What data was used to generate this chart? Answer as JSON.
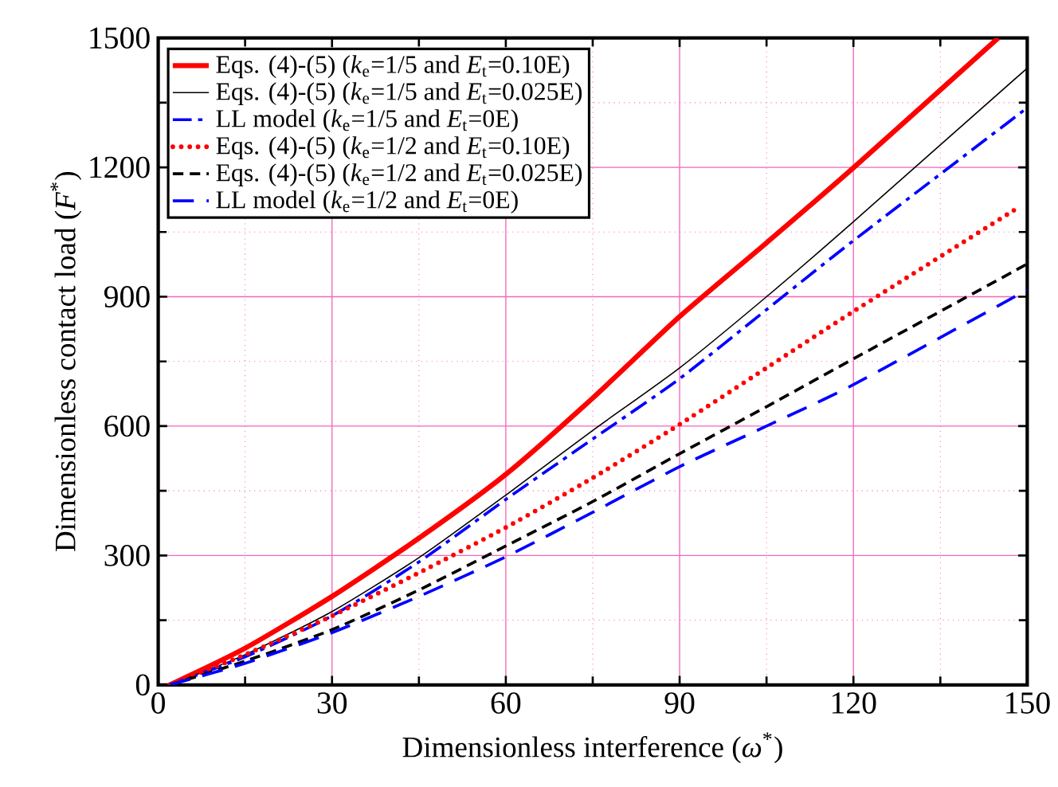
{
  "chart_data": {
    "type": "line",
    "xlabel": "Dimensionless interference (*ω*$^{*}$)",
    "ylabel": "Dimensionless contact load (*F*$^{*}$)",
    "xlim": [
      0,
      150
    ],
    "ylim": [
      0,
      1500
    ],
    "xticks": [
      0,
      {
        "value": 15,
        "label": null
      },
      30,
      {
        "value": 45,
        "label": null
      },
      60,
      {
        "value": 75,
        "label": null
      },
      90,
      {
        "value": 105,
        "label": null
      },
      120,
      {
        "value": 135,
        "label": null
      },
      150
    ],
    "yticks": [
      0,
      {
        "value": 150,
        "label": null
      },
      300,
      {
        "value": 450,
        "label": null
      },
      600,
      {
        "value": 750,
        "label": null
      },
      900,
      {
        "value": 1050,
        "label": null
      },
      1200,
      {
        "value": 1350,
        "label": null
      },
      1500
    ],
    "grid": true,
    "legend": "top left",
    "series": [
      {
        "name": "Eqs. (4)-(5) (*k*$_{e}$=1/5 and *E*$_{t}$=0.10E)",
        "color": "#ff0000",
        "line_style": "solid",
        "x": [
          2,
          15,
          30,
          45,
          60,
          75,
          90,
          105,
          120,
          145
        ],
        "values": [
          0,
          85,
          205,
          340,
          488,
          665,
          854,
          1025,
          1199,
          1500
        ]
      },
      {
        "name": "Eqs. (4)-(5) (*k*$_{e}$=1/5 and *E*$_{t}$=0.025E)",
        "color": "#000000",
        "line_style": "solid",
        "x": [
          2,
          15,
          30,
          45,
          60,
          75,
          90,
          105,
          120,
          150
        ],
        "values": [
          0,
          70,
          170,
          295,
          440,
          590,
          735,
          900,
          1074,
          1430
        ]
      },
      {
        "name": "LL model (*k*$_{e}$=1/5 and *E*$_{t}$=0E)",
        "color": "#0000ff",
        "line_style": "dashdot",
        "x": [
          2,
          15,
          30,
          45,
          60,
          75,
          90,
          105,
          120,
          150
        ],
        "values": [
          0,
          65,
          160,
          285,
          430,
          570,
          710,
          870,
          1030,
          1338
        ]
      },
      {
        "name": "Eqs. (4)-(5) (*k*$_{e}$=1/2 and *E*$_{t}$=0.10E)",
        "color": "#ff0000",
        "line_style": "dotted",
        "x": [
          2,
          15,
          30,
          45,
          60,
          75,
          90,
          105,
          120,
          148
        ],
        "values": [
          0,
          70,
          160,
          260,
          365,
          480,
          604,
          735,
          866,
          1103
        ]
      },
      {
        "name": "Eqs. (4)-(5) (*k*$_{e}$=1/2 and *E*$_{t}$=0.025E)",
        "color": "#000000",
        "line_style": "dashed",
        "x": [
          2,
          15,
          30,
          45,
          60,
          75,
          90,
          105,
          120,
          150
        ],
        "values": [
          0,
          55,
          128,
          220,
          322,
          425,
          536,
          645,
          756,
          976
        ]
      },
      {
        "name": "LL model (*k*$_{e}$=1/2 and *E*$_{t}$=0E)",
        "color": "#0000ff",
        "line_style": "longdashed",
        "x": [
          2,
          15,
          30,
          45,
          60,
          75,
          90,
          105,
          120,
          150
        ],
        "values": [
          0,
          50,
          121,
          205,
          297,
          400,
          506,
          600,
          696,
          916
        ]
      }
    ]
  }
}
